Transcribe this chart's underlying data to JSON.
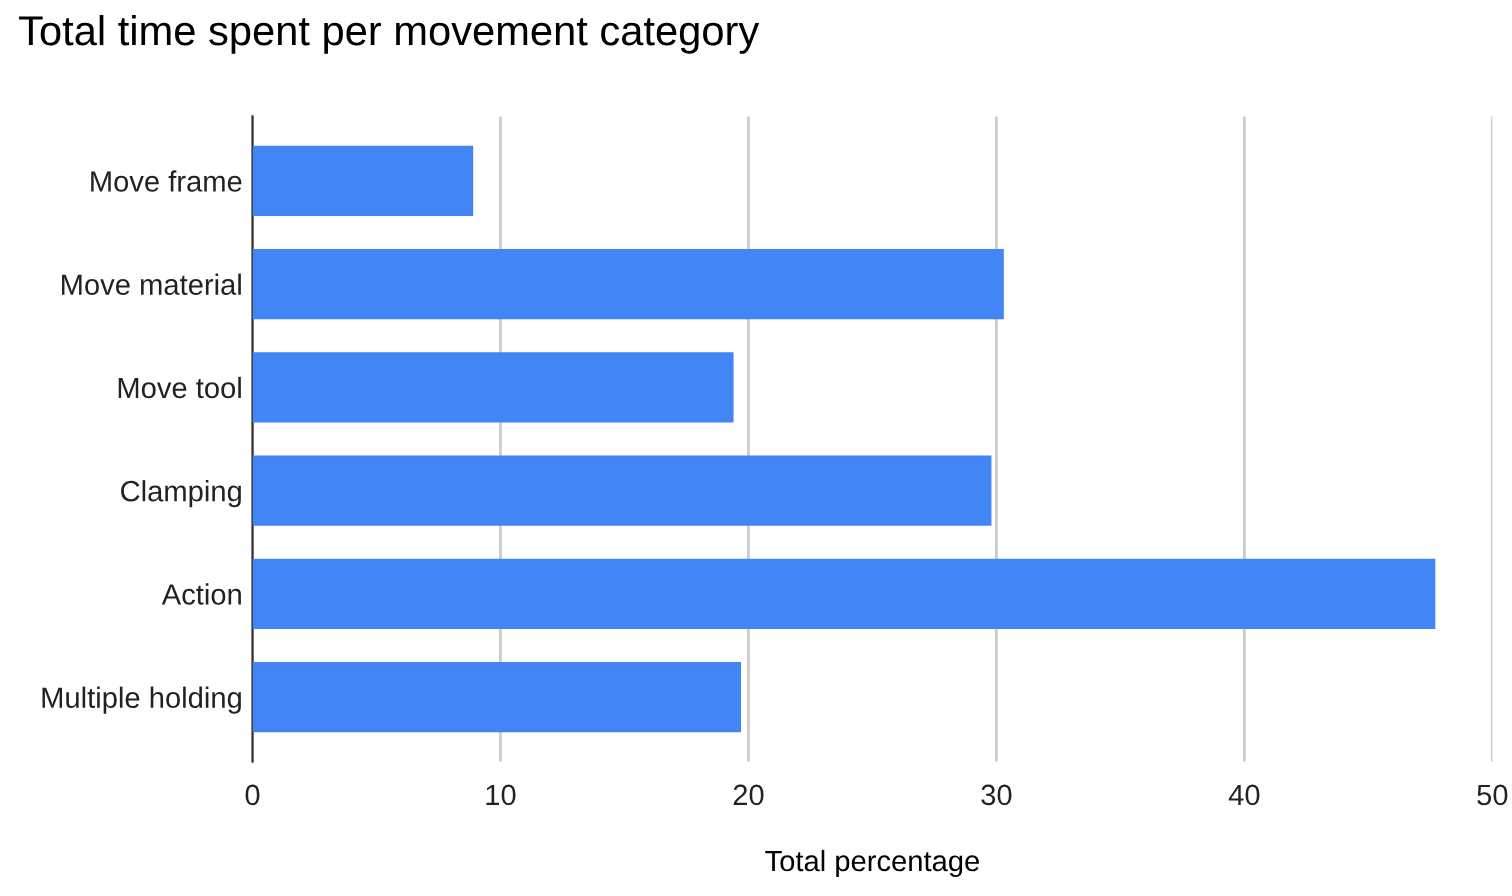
{
  "chart_data": {
    "type": "bar",
    "orientation": "horizontal",
    "title": "Total time spent per movement category",
    "xlabel": "Total percentage",
    "categories": [
      "Move frame",
      "Move material",
      "Move tool",
      "Clamping",
      "Action",
      "Multiple holding"
    ],
    "values": [
      8.9,
      30.3,
      19.4,
      29.8,
      47.7,
      19.7
    ],
    "color": "#4285f4",
    "xlim": [
      0,
      50
    ],
    "xticks": [
      0,
      10,
      20,
      30,
      40,
      50
    ],
    "grid": "x",
    "legend": false
  }
}
